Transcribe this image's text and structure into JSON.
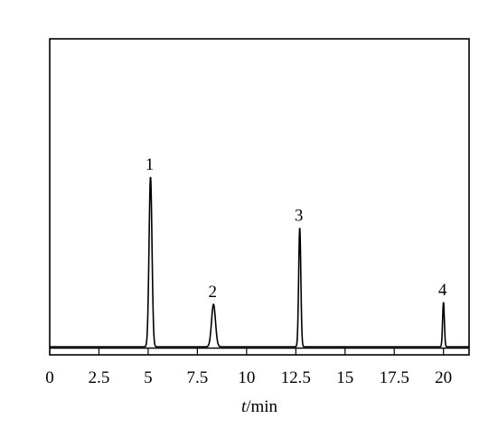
{
  "chart_data": {
    "type": "line",
    "xlabel_var": "t",
    "xlabel_unit": "/min",
    "ylabel": "",
    "xlim": [
      0,
      21.3
    ],
    "ylim": [
      0,
      1.0
    ],
    "grid": false,
    "x_ticks": [
      0,
      2.5,
      5,
      7.5,
      10,
      12.5,
      15,
      17.5,
      20
    ],
    "x_tick_labels": [
      "0",
      "2.5",
      "5",
      "7.5",
      "10",
      "12.5",
      "15",
      "17.5",
      "20"
    ],
    "peaks": [
      {
        "label": "1",
        "rt": 5.12,
        "height": 1.0,
        "width": 0.075
      },
      {
        "label": "2",
        "rt": 8.32,
        "height": 0.25,
        "width": 0.1
      },
      {
        "label": "3",
        "rt": 12.7,
        "height": 0.7,
        "width": 0.055
      },
      {
        "label": "4",
        "rt": 20.0,
        "height": 0.26,
        "width": 0.045
      }
    ]
  }
}
